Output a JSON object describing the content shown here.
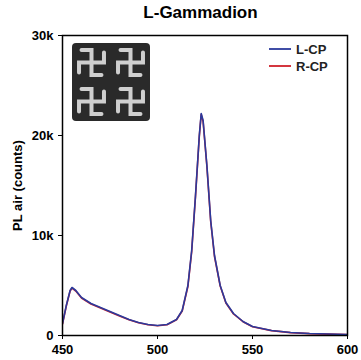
{
  "chart_data": {
    "type": "line",
    "title": "L-Gammadion",
    "y_label": "PL air (counts)",
    "x": [
      450,
      452,
      454,
      455,
      457,
      460,
      465,
      470,
      475,
      480,
      485,
      490,
      495,
      500,
      505,
      510,
      513,
      516,
      518,
      520,
      522,
      523,
      524,
      526,
      528,
      530,
      533,
      536,
      540,
      545,
      550,
      560,
      570,
      580,
      590,
      600
    ],
    "series": [
      {
        "name": "L-CP",
        "color": "#2b3a9c",
        "values": [
          1200,
          3000,
          4500,
          4800,
          4500,
          3800,
          3200,
          2800,
          2400,
          2000,
          1600,
          1300,
          1100,
          1000,
          1100,
          1600,
          2500,
          5000,
          8500,
          14000,
          20000,
          22200,
          21500,
          17000,
          11500,
          8000,
          5000,
          3300,
          2200,
          1400,
          900,
          500,
          300,
          200,
          150,
          100
        ]
      },
      {
        "name": "R-CP",
        "color": "#d0202a",
        "values": [
          1150,
          2950,
          4450,
          4750,
          4450,
          3750,
          3150,
          2750,
          2350,
          1950,
          1580,
          1280,
          1080,
          980,
          1080,
          1580,
          2450,
          4900,
          8400,
          13900,
          19900,
          22100,
          21400,
          16900,
          11400,
          7900,
          4950,
          3250,
          2150,
          1380,
          880,
          490,
          290,
          190,
          140,
          90
        ]
      }
    ],
    "xlim": [
      450,
      600
    ],
    "xticks": [
      450,
      500,
      550,
      600
    ],
    "ylim": [
      0,
      30000
    ],
    "yticks": [
      0,
      {
        "value": 10000,
        "label": "10k"
      },
      {
        "value": 20000,
        "label": "20k"
      },
      {
        "value": 30000,
        "label": "30k"
      }
    ],
    "legend": "top-right",
    "grid": false
  }
}
